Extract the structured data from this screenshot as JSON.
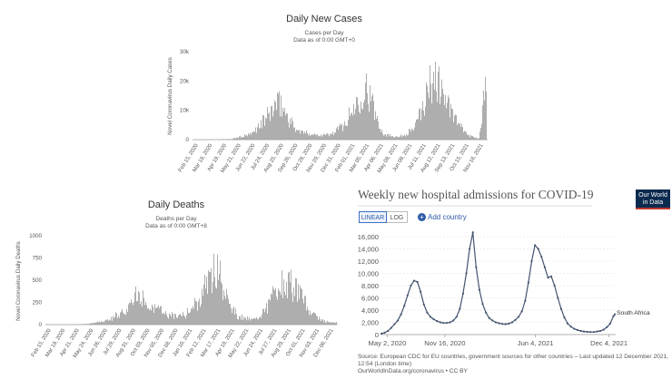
{
  "chart_data": [
    {
      "type": "bar",
      "title": "Daily New Cases",
      "subtitle_line1": "Cases per Day",
      "subtitle_line2": "Data as of 0:00 GMT+0",
      "ylabel": "Novel Coronavirus Daily Cases",
      "ylim": [
        0,
        30000
      ],
      "yticks": [
        "0",
        "10k",
        "20k",
        "30k"
      ],
      "xticks": [
        "Feb 15, 2020",
        "Mar 18, 2020",
        "Apr 19, 2020",
        "May 21, 2020",
        "Jun 22, 2020",
        "Jul 24, 2020",
        "Aug 25, 2020",
        "Sep 26, 2020",
        "Oct 28, 2020",
        "Nov 29, 2020",
        "Dec 31, 2020",
        "Feb 01, 2021",
        "Mar 05, 2021",
        "Apr 06, 2021",
        "May 08, 2021",
        "Jun 09, 2021",
        "Jul 11, 2021",
        "Aug 12, 2021",
        "Sep 13, 2021",
        "Oct 15, 2021",
        "Nov 16, 2021"
      ],
      "wave_profile": [
        {
          "t": 0.0,
          "v": 0
        },
        {
          "t": 0.08,
          "v": 0
        },
        {
          "t": 0.13,
          "v": 200
        },
        {
          "t": 0.2,
          "v": 2000
        },
        {
          "t": 0.25,
          "v": 8000
        },
        {
          "t": 0.28,
          "v": 12500
        },
        {
          "t": 0.3,
          "v": 13000
        },
        {
          "t": 0.33,
          "v": 7000
        },
        {
          "t": 0.36,
          "v": 3000
        },
        {
          "t": 0.42,
          "v": 1800
        },
        {
          "t": 0.47,
          "v": 1800
        },
        {
          "t": 0.52,
          "v": 6000
        },
        {
          "t": 0.56,
          "v": 14000
        },
        {
          "t": 0.59,
          "v": 20000
        },
        {
          "t": 0.62,
          "v": 10000
        },
        {
          "t": 0.65,
          "v": 2000
        },
        {
          "t": 0.69,
          "v": 1200
        },
        {
          "t": 0.72,
          "v": 1500
        },
        {
          "t": 0.76,
          "v": 5000
        },
        {
          "t": 0.79,
          "v": 14000
        },
        {
          "t": 0.82,
          "v": 24000
        },
        {
          "t": 0.85,
          "v": 18000
        },
        {
          "t": 0.88,
          "v": 10000
        },
        {
          "t": 0.91,
          "v": 5000
        },
        {
          "t": 0.94,
          "v": 1500
        },
        {
          "t": 0.975,
          "v": 500
        },
        {
          "t": 0.985,
          "v": 6000
        },
        {
          "t": 0.995,
          "v": 20000
        },
        {
          "t": 1.0,
          "v": 17000
        }
      ]
    },
    {
      "type": "bar",
      "title": "Daily Deaths",
      "subtitle_line1": "Deaths per Day",
      "subtitle_line2": "Data as of 0:00 GMT+8",
      "ylabel": "Novel Coronavirus Daily Deaths",
      "ylim": [
        0,
        1000
      ],
      "yticks": [
        "0",
        "250",
        "500",
        "750",
        "1000"
      ],
      "xticks": [
        "Feb 15, 2020",
        "Mar 19, 2020",
        "Apr 21, 2020",
        "May 24, 2020",
        "Jun 26, 2020",
        "Jul 29, 2020",
        "Aug 31, 2020",
        "Oct 03, 2020",
        "Nov 05, 2020",
        "Dec 08, 2020",
        "Jan 10, 2021",
        "Feb 12, 2021",
        "Mar 17, 2021",
        "Apr 19, 2021",
        "May 22, 2021",
        "Jun 24, 2021",
        "Jul 27, 2021",
        "Aug 29, 2021",
        "Oct 01, 2021",
        "Nov 03, 2021",
        "Dec 06, 2021"
      ],
      "wave_profile": [
        {
          "t": 0.0,
          "v": 0
        },
        {
          "t": 0.09,
          "v": 0
        },
        {
          "t": 0.15,
          "v": 10
        },
        {
          "t": 0.22,
          "v": 60
        },
        {
          "t": 0.28,
          "v": 200
        },
        {
          "t": 0.32,
          "v": 380
        },
        {
          "t": 0.36,
          "v": 250
        },
        {
          "t": 0.42,
          "v": 110
        },
        {
          "t": 0.48,
          "v": 120
        },
        {
          "t": 0.53,
          "v": 300
        },
        {
          "t": 0.56,
          "v": 550
        },
        {
          "t": 0.59,
          "v": 720
        },
        {
          "t": 0.62,
          "v": 380
        },
        {
          "t": 0.66,
          "v": 100
        },
        {
          "t": 0.72,
          "v": 60
        },
        {
          "t": 0.76,
          "v": 200
        },
        {
          "t": 0.8,
          "v": 480
        },
        {
          "t": 0.84,
          "v": 500
        },
        {
          "t": 0.88,
          "v": 320
        },
        {
          "t": 0.92,
          "v": 120
        },
        {
          "t": 0.96,
          "v": 40
        },
        {
          "t": 1.0,
          "v": 25
        }
      ]
    },
    {
      "type": "line",
      "title": "Weekly new hospital admissions for COVID-19",
      "ylim": [
        0,
        16000
      ],
      "yticks": [
        "0",
        "2,000",
        "4,000",
        "6,000",
        "8,000",
        "10,000",
        "12,000",
        "14,000",
        "16,000"
      ],
      "xticks": [
        "May 2, 2020",
        "Nov 16, 2020",
        "Jun 4, 2021",
        "Dec 4, 2021"
      ],
      "xtick_positions": [
        0.025,
        0.272,
        0.66,
        0.975
      ],
      "series": [
        {
          "name": "South Africa",
          "x": [
            0,
            0.014,
            0.028,
            0.042,
            0.056,
            0.07,
            0.084,
            0.098,
            0.112,
            0.126,
            0.14,
            0.154,
            0.168,
            0.182,
            0.196,
            0.21,
            0.224,
            0.238,
            0.252,
            0.266,
            0.28,
            0.294,
            0.308,
            0.322,
            0.336,
            0.35,
            0.364,
            0.378,
            0.392,
            0.406,
            0.42,
            0.434,
            0.448,
            0.462,
            0.476,
            0.49,
            0.504,
            0.518,
            0.532,
            0.546,
            0.56,
            0.574,
            0.588,
            0.602,
            0.616,
            0.63,
            0.644,
            0.658,
            0.672,
            0.686,
            0.7,
            0.714,
            0.728,
            0.742,
            0.756,
            0.77,
            0.784,
            0.798,
            0.812,
            0.826,
            0.84,
            0.854,
            0.868,
            0.882,
            0.896,
            0.91,
            0.924,
            0.938,
            0.952,
            0.966,
            0.98,
            0.994,
            1.0
          ],
          "values": [
            150,
            300,
            600,
            1100,
            1700,
            2300,
            3300,
            4700,
            6400,
            8000,
            8800,
            8600,
            7000,
            4900,
            3600,
            2900,
            2500,
            2200,
            2000,
            1900,
            1900,
            2000,
            2300,
            2900,
            4200,
            6700,
            10000,
            14000,
            16700,
            11000,
            7300,
            5000,
            3600,
            2700,
            2300,
            2000,
            1850,
            1750,
            1700,
            1800,
            2000,
            2400,
            2900,
            3800,
            5500,
            8500,
            12000,
            14600,
            14000,
            12700,
            11000,
            9300,
            9500,
            8000,
            6000,
            4200,
            2800,
            1800,
            1300,
            950,
            750,
            600,
            500,
            450,
            420,
            420,
            500,
            600,
            800,
            1200,
            1800,
            3000,
            3300
          ]
        }
      ],
      "end_label": "South Africa",
      "toggle": {
        "linear_label": "LINEAR",
        "log_label": "LOG"
      },
      "add_country_label": "Add country",
      "source_line1": "Source: European CDC for EU countries, government sources for other countries – Last updated 12 December 2021,",
      "source_line2": "12:54 (London time)",
      "source_line3": "OurWorldInData.org/coronavirus • CC BY"
    }
  ],
  "logo": {
    "line1": "Our World",
    "line2": "in Data"
  },
  "colors": {
    "bar": "#9a9a9a",
    "line": "#44546f",
    "grid": "#e3e3e3",
    "brand": "#0b2a4f",
    "link": "#2d5aa8"
  }
}
